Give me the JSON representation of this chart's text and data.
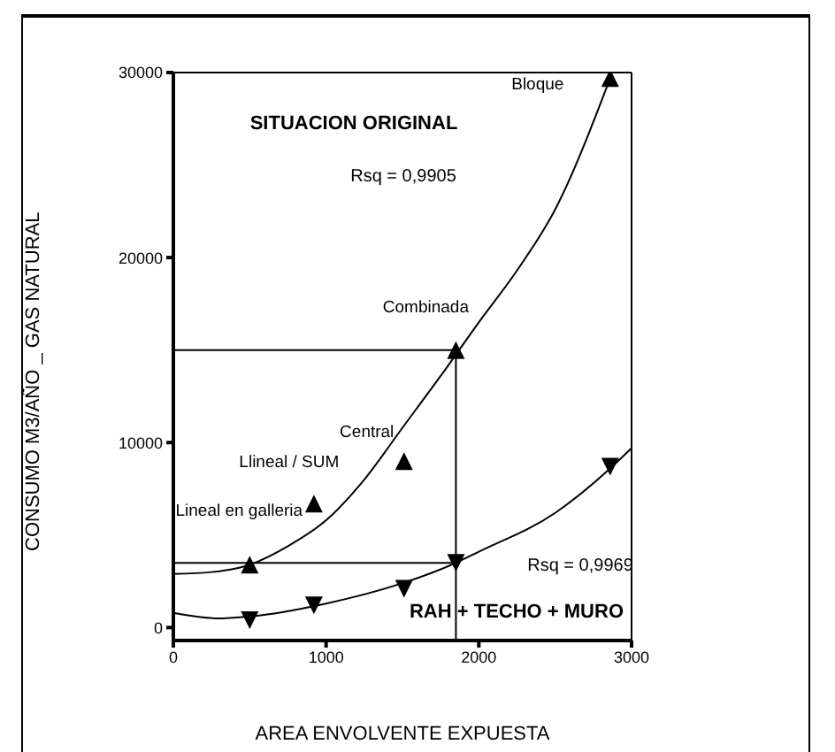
{
  "chart_data": {
    "type": "scatter",
    "xlabel": "AREA ENVOLVENTE EXPUESTA",
    "ylabel": "CONSUMO  M3/AÑO _  GAS NATURAL",
    "xlim": [
      0,
      3000
    ],
    "xticks": [
      0,
      1000,
      2000,
      3000
    ],
    "ylim": [
      -700,
      30000
    ],
    "yticks": [
      0,
      10000,
      20000,
      30000
    ],
    "grid": false,
    "legend": false,
    "series": [
      {
        "type": "line",
        "color": "#000000",
        "x": [
          0,
          250,
          500,
          750,
          1000,
          1250,
          1500,
          1750,
          2000,
          2250,
          2500,
          2860
        ],
        "values": [
          2900,
          3000,
          3400,
          4400,
          5800,
          8000,
          10800,
          13600,
          16500,
          19300,
          22600,
          29700
        ]
      },
      {
        "type": "line",
        "color": "#000000",
        "x": [
          0,
          300,
          500,
          1000,
          1500,
          1850,
          2000,
          2500,
          2860,
          3000
        ],
        "values": [
          800,
          500,
          600,
          1300,
          2400,
          3500,
          4100,
          6200,
          8600,
          9700
        ]
      },
      {
        "type": "line",
        "color": "#000000",
        "x": [
          0,
          1850,
          1850
        ],
        "values": [
          15000,
          15000,
          -700
        ]
      },
      {
        "type": "line",
        "color": "#000000",
        "x": [
          0,
          1850
        ],
        "values": [
          3500,
          3500
        ]
      },
      {
        "marker": "triangle",
        "color": "#000000",
        "x": [
          500,
          920,
          1510,
          1850,
          2860
        ],
        "values": [
          3400,
          6700,
          9000,
          15000,
          29700
        ]
      },
      {
        "marker": "triangle-down",
        "color": "#000000",
        "x": [
          500,
          920,
          1510,
          1850,
          2860
        ],
        "values": [
          400,
          1200,
          2100,
          3500,
          8700
        ]
      }
    ],
    "annotations": [
      "SITUACION ORIGINAL",
      "Rsq = 0,9905",
      {
        "text": "Bloque",
        "x": 2860,
        "y": 29700
      },
      {
        "text": "Combinada",
        "x": 1850,
        "y": 15000
      },
      {
        "text": "Central",
        "x": 1510,
        "y": 9000
      },
      {
        "text": "Llineal / SUM",
        "x": 920,
        "y": 6700
      },
      {
        "text": "Lineal en galleria",
        "x": 500,
        "y": 3400
      },
      "Rsq = 0,9969",
      "RAH + TECHO + MURO"
    ]
  }
}
